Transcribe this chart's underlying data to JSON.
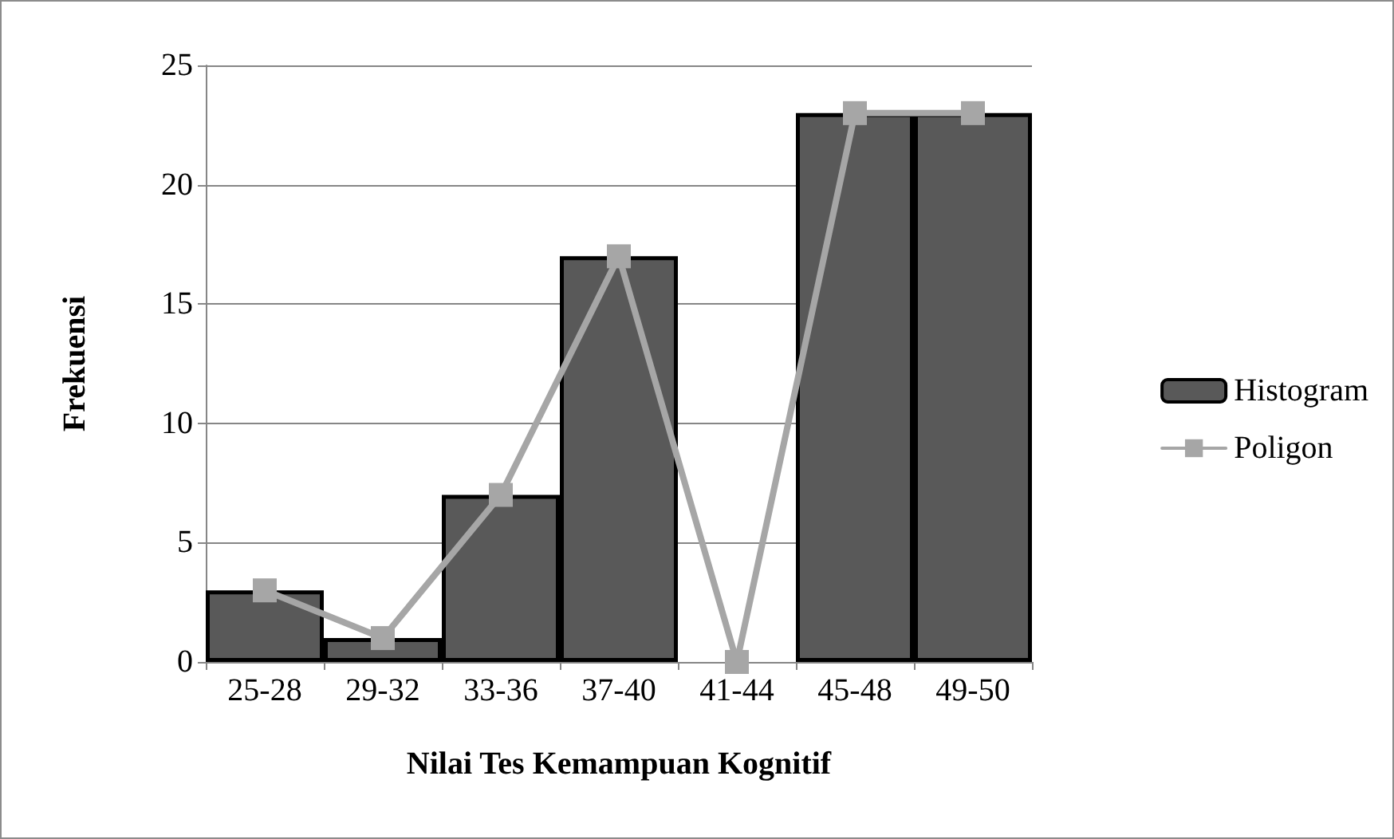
{
  "chart_data": {
    "type": "bar",
    "xlabel": "Nilai Tes Kemampuan Kognitif",
    "ylabel": "Frekuensi",
    "categories": [
      "25-28",
      "29-32",
      "33-36",
      "37-40",
      "41-44",
      "45-48",
      "49-50"
    ],
    "series": [
      {
        "name": "Histogram",
        "color": "#595959",
        "values": [
          3,
          1,
          7,
          17,
          0,
          23,
          23
        ]
      },
      {
        "name": "Poligon",
        "type": "line",
        "color": "#a6a6a6",
        "marker": "square",
        "line_style": "solid",
        "values": [
          3,
          1,
          7,
          17,
          0,
          23,
          23
        ]
      }
    ],
    "ylim": [
      0,
      25
    ],
    "yticks": [
      0,
      5,
      10,
      15,
      20,
      25
    ],
    "grid": "y",
    "legend": "right"
  }
}
